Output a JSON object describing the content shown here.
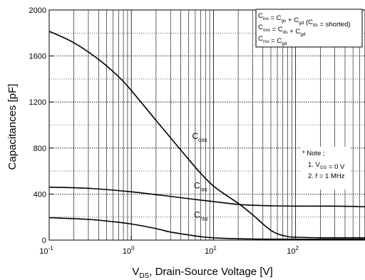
{
  "chart_data": {
    "type": "line",
    "title": "",
    "xlabel": {
      "main": "V",
      "sub": "DS",
      "rest": ", Drain-Source Voltage [V]"
    },
    "ylabel": "Capacitances [pF]",
    "xscale": "log",
    "xlim": [
      0.1,
      700
    ],
    "ylim": [
      0,
      2000
    ],
    "grid": true,
    "x_ticks": [
      {
        "value": 0.1,
        "base": "10",
        "exp": "-1"
      },
      {
        "value": 1,
        "base": "10",
        "exp": "0"
      },
      {
        "value": 10,
        "base": "10",
        "exp": "1"
      },
      {
        "value": 100,
        "base": "10",
        "exp": "2"
      }
    ],
    "y_ticks": [
      {
        "value": 0,
        "label": "0"
      },
      {
        "value": 400,
        "label": "400"
      },
      {
        "value": 800,
        "label": "800"
      },
      {
        "value": 1200,
        "label": "1200"
      },
      {
        "value": 1600,
        "label": "1600"
      },
      {
        "value": 2000,
        "label": "2000"
      }
    ],
    "series": [
      {
        "name": "oss",
        "label_main": "C",
        "label_sub": "oss",
        "label_at": [
          5.5,
          880
        ],
        "points": [
          [
            0.1,
            1815
          ],
          [
            0.2,
            1715
          ],
          [
            0.4,
            1570
          ],
          [
            0.7,
            1420
          ],
          [
            1,
            1300
          ],
          [
            2,
            1040
          ],
          [
            3,
            890
          ],
          [
            5,
            700
          ],
          [
            7,
            580
          ],
          [
            10,
            470
          ],
          [
            15,
            380
          ],
          [
            20,
            320
          ],
          [
            30,
            220
          ],
          [
            40,
            140
          ],
          [
            50,
            85
          ],
          [
            60,
            55
          ],
          [
            80,
            30
          ],
          [
            100,
            25
          ],
          [
            200,
            20
          ],
          [
            700,
            20
          ]
        ]
      },
      {
        "name": "iss",
        "label_main": "C",
        "label_sub": "iss",
        "label_at": [
          5.8,
          450
        ],
        "points": [
          [
            0.1,
            460
          ],
          [
            0.3,
            450
          ],
          [
            1,
            420
          ],
          [
            2,
            395
          ],
          [
            3,
            380
          ],
          [
            5,
            360
          ],
          [
            10,
            335
          ],
          [
            20,
            310
          ],
          [
            40,
            300
          ],
          [
            100,
            295
          ],
          [
            300,
            295
          ],
          [
            700,
            290
          ]
        ]
      },
      {
        "name": "rss",
        "label_main": "C",
        "label_sub": "rss",
        "label_at": [
          5.8,
          195
        ],
        "points": [
          [
            0.1,
            195
          ],
          [
            0.3,
            180
          ],
          [
            0.6,
            160
          ],
          [
            1,
            140
          ],
          [
            2,
            100
          ],
          [
            3,
            70
          ],
          [
            5,
            45
          ],
          [
            7,
            30
          ],
          [
            10,
            20
          ],
          [
            20,
            12
          ],
          [
            50,
            8
          ],
          [
            700,
            8
          ]
        ]
      }
    ],
    "definitions": [
      [
        {
          "t": "C",
          "s": "iss"
        },
        {
          "t": " = C",
          "s": "gs"
        },
        {
          "t": " + C",
          "s": "gd"
        },
        {
          "t": " (C",
          "s": "ds"
        },
        {
          "t": " = shorted)",
          "s": ""
        }
      ],
      [
        {
          "t": "C",
          "s": "oss"
        },
        {
          "t": " = C",
          "s": "ds"
        },
        {
          "t": " + C",
          "s": "gd"
        }
      ],
      [
        {
          "t": "C",
          "s": "rss"
        },
        {
          "t": " = C",
          "s": "gd"
        }
      ]
    ],
    "notes": [
      [
        {
          "t": "* Note ;",
          "s": ""
        }
      ],
      [
        {
          "t": "1. V",
          "s": "GS"
        },
        {
          "t": " = 0 V",
          "s": ""
        }
      ],
      [
        {
          "t": "2. f = 1 MHz",
          "s": ""
        }
      ]
    ]
  }
}
